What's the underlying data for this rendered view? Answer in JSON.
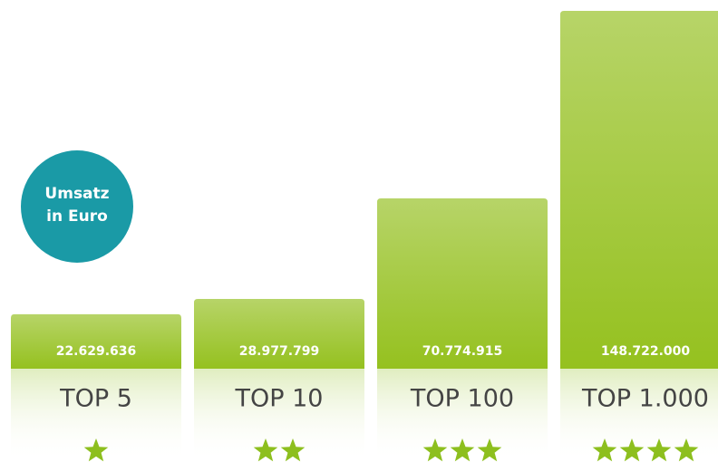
{
  "chart_data": {
    "type": "bar",
    "annotation": [
      "Umsatz",
      "in Euro"
    ],
    "categories": [
      "TOP 5",
      "TOP 10",
      "TOP 100",
      "TOP 1.000"
    ],
    "values": [
      22629636,
      28977799,
      70774915,
      148722000
    ],
    "value_labels": [
      "22.629.636",
      "28.977.799",
      "70.774.915",
      "148.722.000"
    ],
    "color": "#95c11f"
  }
}
